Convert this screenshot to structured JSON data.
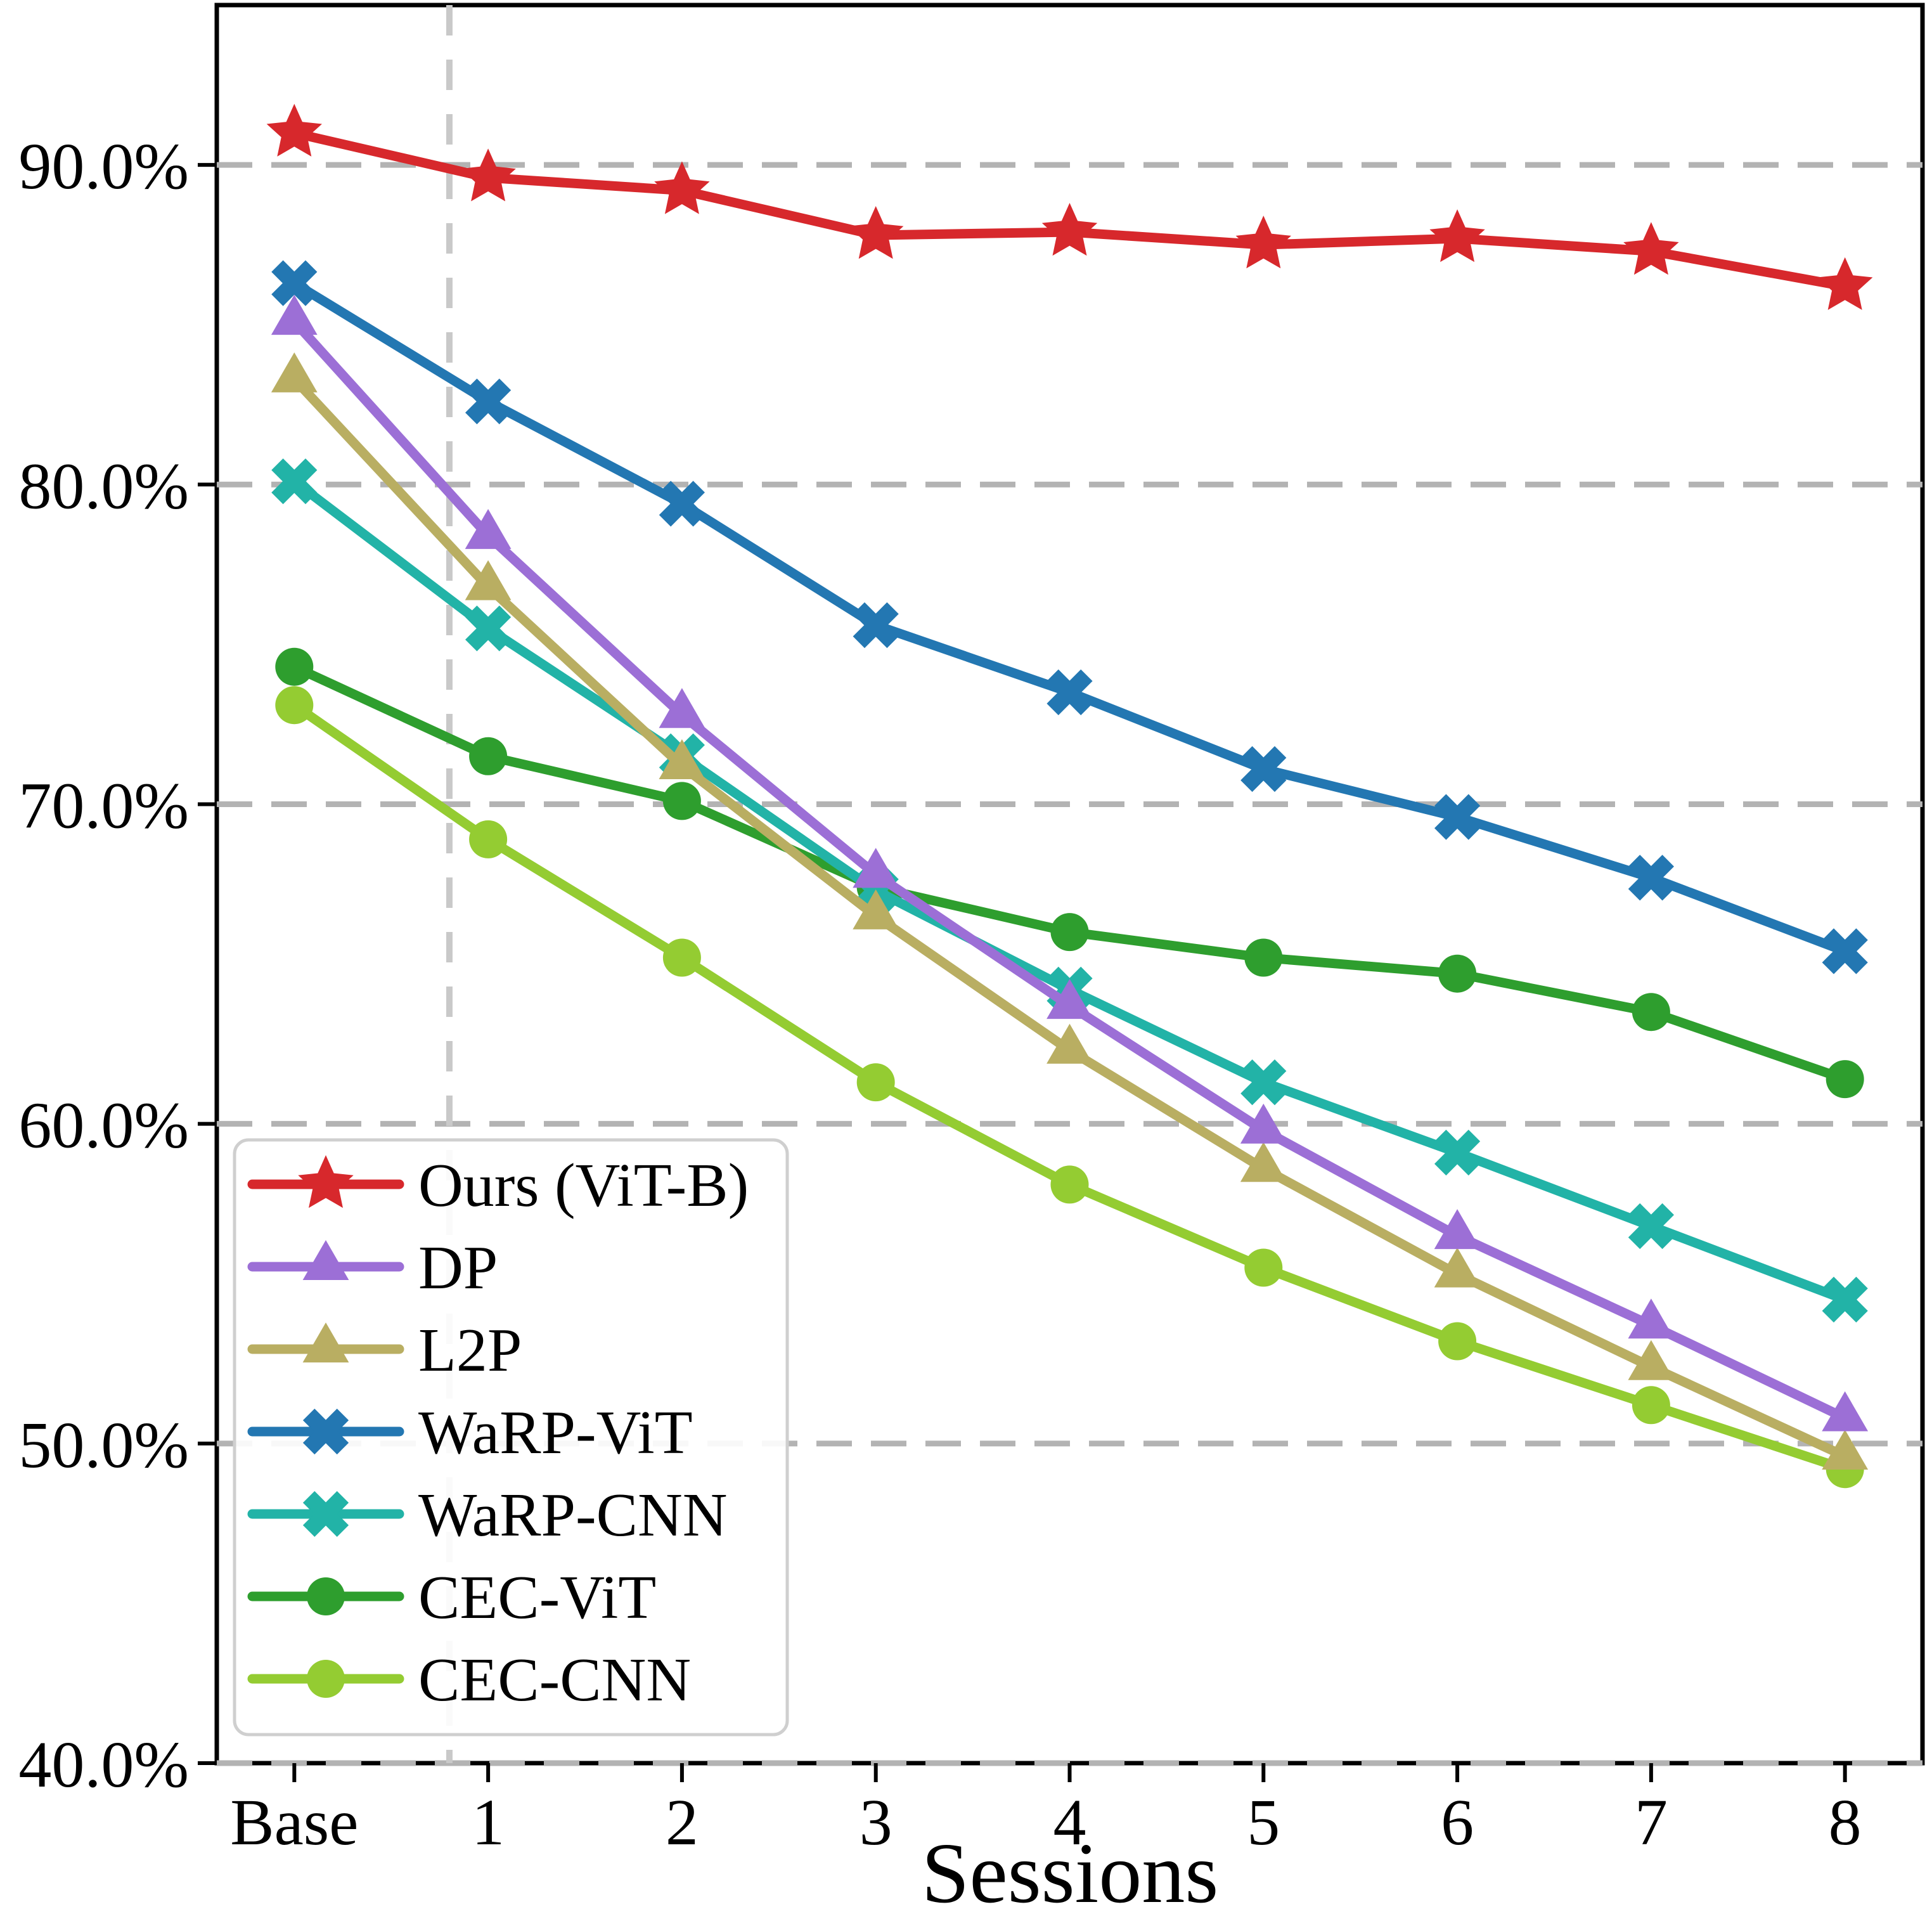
{
  "chart_data": {
    "type": "line",
    "title": "",
    "xlabel": "Sessions",
    "ylabel": "",
    "categories": [
      "Base",
      "1",
      "2",
      "3",
      "4",
      "5",
      "6",
      "7",
      "8"
    ],
    "y_ticks": [
      40,
      50,
      60,
      70,
      80,
      90
    ],
    "y_tick_labels": [
      "40.0%",
      "50.0%",
      "60.0%",
      "70.0%",
      "80.0%",
      "90.0%"
    ],
    "ylim": [
      40,
      95
    ],
    "xlim": [
      -0.4,
      8.4
    ],
    "grid": "horizontal dashed gridlines at each y tick",
    "separator_vline_x": 0.8,
    "legend_position": "lower left",
    "colors": {
      "grid": "#b3b3b3",
      "separator": "#c9c9c9",
      "frame": "#000000",
      "legend_border": "#cfcfcf"
    },
    "series": [
      {
        "name": "Ours (ViT-B)",
        "marker": "star",
        "color": "#d7282c",
        "values": [
          91.0,
          89.6,
          89.2,
          87.8,
          87.9,
          87.5,
          87.7,
          87.3,
          86.2
        ]
      },
      {
        "name": "DP",
        "marker": "triangle",
        "color": "#9c6fd6",
        "values": [
          85.1,
          78.4,
          72.8,
          67.8,
          63.7,
          59.8,
          56.5,
          53.7,
          50.8
        ]
      },
      {
        "name": "L2P",
        "marker": "triangle",
        "color": "#b9ae62",
        "values": [
          83.3,
          76.8,
          71.2,
          66.5,
          62.3,
          58.6,
          55.3,
          52.4,
          49.6
        ]
      },
      {
        "name": "WaRP-ViT",
        "marker": "x",
        "color": "#2377b2",
        "values": [
          86.3,
          82.6,
          79.4,
          75.6,
          73.5,
          71.1,
          69.6,
          67.7,
          65.4
        ]
      },
      {
        "name": "WaRP-CNN",
        "marker": "x",
        "color": "#22b3a7",
        "values": [
          80.1,
          75.5,
          71.5,
          67.3,
          64.2,
          61.3,
          59.1,
          56.8,
          54.5
        ]
      },
      {
        "name": "CEC-ViT",
        "marker": "circle",
        "color": "#2e9e2e",
        "values": [
          74.3,
          71.5,
          70.1,
          67.4,
          66.0,
          65.2,
          64.7,
          63.5,
          61.4
        ]
      },
      {
        "name": "CEC-CNN",
        "marker": "circle",
        "color": "#94cc32",
        "values": [
          73.1,
          68.9,
          65.2,
          61.3,
          58.1,
          55.5,
          53.2,
          51.2,
          49.2
        ]
      }
    ]
  }
}
